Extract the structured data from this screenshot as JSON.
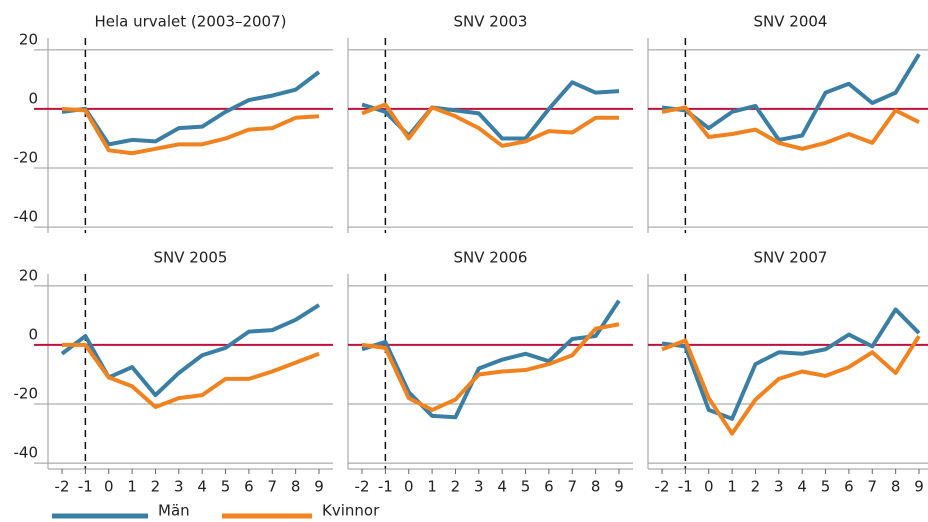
{
  "chart_data": [
    {
      "type": "line",
      "title": "Hela urvalet (2003–2007)",
      "x": [
        -2,
        -1,
        0,
        1,
        2,
        3,
        4,
        5,
        6,
        7,
        8,
        9
      ],
      "xlim": [
        -2.6,
        9.6
      ],
      "xticks": [
        -2,
        -1,
        0,
        1,
        2,
        3,
        4,
        5,
        6,
        7,
        8,
        9
      ],
      "ylim": [
        -42,
        24
      ],
      "yticks": [
        20,
        0,
        -20,
        -40
      ],
      "grid": true,
      "zero_line_color": "#c0103c",
      "dashed_vline": -1,
      "series": [
        {
          "name": "Män",
          "color": "#3a7fa3",
          "values": [
            -1,
            0,
            -12,
            -10.5,
            -11,
            -6.5,
            -6,
            -1,
            3,
            4.5,
            6.5,
            12.5
          ]
        },
        {
          "name": "Kvinnor",
          "color": "#f0831f",
          "values": [
            0,
            -0.5,
            -14,
            -15,
            -13.5,
            -12,
            -12,
            -10,
            -7,
            -6.5,
            -3,
            -2.5
          ]
        }
      ]
    },
    {
      "type": "line",
      "title": "SNV 2003",
      "x": [
        -2,
        -1,
        0,
        1,
        2,
        3,
        4,
        5,
        6,
        7,
        8,
        9
      ],
      "xlim": [
        -2.6,
        9.6
      ],
      "xticks": [
        -2,
        -1,
        0,
        1,
        2,
        3,
        4,
        5,
        6,
        7,
        8,
        9
      ],
      "ylim": [
        -42,
        24
      ],
      "yticks": [
        20,
        0,
        -20,
        -40
      ],
      "grid": true,
      "zero_line_color": "#c0103c",
      "dashed_vline": -1,
      "series": [
        {
          "name": "Män",
          "color": "#3a7fa3",
          "values": [
            1.5,
            -1,
            -9,
            0.5,
            -0.5,
            -1.5,
            -10,
            -10,
            0,
            9,
            5.5,
            6
          ]
        },
        {
          "name": "Kvinnor",
          "color": "#f0831f",
          "values": [
            -1.5,
            1.5,
            -10,
            0.5,
            -2.5,
            -6.5,
            -12.5,
            -11,
            -7.5,
            -8,
            -3,
            -3
          ]
        }
      ]
    },
    {
      "type": "line",
      "title": "SNV 2004",
      "x": [
        -2,
        -1,
        0,
        1,
        2,
        3,
        4,
        5,
        6,
        7,
        8,
        9
      ],
      "xlim": [
        -2.6,
        9.6
      ],
      "xticks": [
        -2,
        -1,
        0,
        1,
        2,
        3,
        4,
        5,
        6,
        7,
        8,
        9
      ],
      "ylim": [
        -42,
        24
      ],
      "yticks": [
        20,
        0,
        -20,
        -40
      ],
      "grid": true,
      "zero_line_color": "#c0103c",
      "dashed_vline": -1,
      "series": [
        {
          "name": "Män",
          "color": "#3a7fa3",
          "values": [
            0.5,
            -0.5,
            -6.5,
            -1,
            1,
            -10.5,
            -9,
            5.5,
            8.5,
            2,
            5.5,
            18.5
          ]
        },
        {
          "name": "Kvinnor",
          "color": "#f0831f",
          "values": [
            -1,
            0.5,
            -9.5,
            -8.5,
            -7,
            -11.5,
            -13.5,
            -11.5,
            -8.5,
            -11.5,
            -0.5,
            -4.5
          ]
        }
      ]
    },
    {
      "type": "line",
      "title": "SNV 2005",
      "x": [
        -2,
        -1,
        0,
        1,
        2,
        3,
        4,
        5,
        6,
        7,
        8,
        9
      ],
      "xlim": [
        -2.6,
        9.6
      ],
      "xticks": [
        -2,
        -1,
        0,
        1,
        2,
        3,
        4,
        5,
        6,
        7,
        8,
        9
      ],
      "ylim": [
        -42,
        24
      ],
      "yticks": [
        20,
        0,
        -20,
        -40
      ],
      "grid": true,
      "zero_line_color": "#c0103c",
      "dashed_vline": -1,
      "series": [
        {
          "name": "Män",
          "color": "#3a7fa3",
          "values": [
            -3,
            3,
            -11,
            -7.5,
            -17,
            -9.5,
            -3.5,
            -1,
            4.5,
            5,
            8.5,
            13.5
          ]
        },
        {
          "name": "Kvinnor",
          "color": "#f0831f",
          "values": [
            0,
            0,
            -11,
            -14,
            -21,
            -18,
            -17,
            -11.5,
            -11.5,
            -9,
            -6,
            -3
          ]
        }
      ]
    },
    {
      "type": "line",
      "title": "SNV 2006",
      "x": [
        -2,
        -1,
        0,
        1,
        2,
        3,
        4,
        5,
        6,
        7,
        8,
        9
      ],
      "xlim": [
        -2.6,
        9.6
      ],
      "xticks": [
        -2,
        -1,
        0,
        1,
        2,
        3,
        4,
        5,
        6,
        7,
        8,
        9
      ],
      "ylim": [
        -42,
        24
      ],
      "yticks": [
        20,
        0,
        -20,
        -40
      ],
      "grid": true,
      "zero_line_color": "#c0103c",
      "dashed_vline": -1,
      "series": [
        {
          "name": "Män",
          "color": "#3a7fa3",
          "values": [
            -1.5,
            1,
            -16,
            -24,
            -24.5,
            -8,
            -5,
            -3,
            -5.5,
            2,
            3,
            15
          ]
        },
        {
          "name": "Kvinnor",
          "color": "#f0831f",
          "values": [
            0,
            -1,
            -18,
            -22,
            -18.5,
            -10,
            -9,
            -8.5,
            -6.5,
            -3.5,
            5.5,
            7
          ]
        }
      ]
    },
    {
      "type": "line",
      "title": "SNV 2007",
      "x": [
        -2,
        -1,
        0,
        1,
        2,
        3,
        4,
        5,
        6,
        7,
        8,
        9
      ],
      "xlim": [
        -2.6,
        9.6
      ],
      "xticks": [
        -2,
        -1,
        0,
        1,
        2,
        3,
        4,
        5,
        6,
        7,
        8,
        9
      ],
      "ylim": [
        -42,
        24
      ],
      "yticks": [
        20,
        0,
        -20,
        -40
      ],
      "grid": true,
      "zero_line_color": "#c0103c",
      "dashed_vline": -1,
      "series": [
        {
          "name": "Män",
          "color": "#3a7fa3",
          "values": [
            0.5,
            -0.5,
            -22,
            -25,
            -6.5,
            -2.5,
            -3,
            -1.5,
            3.5,
            -0.5,
            12,
            4
          ]
        },
        {
          "name": "Kvinnor",
          "color": "#f0831f",
          "values": [
            -1.5,
            1.5,
            -18,
            -30,
            -18.5,
            -11.5,
            -9,
            -10.5,
            -7.5,
            -2.5,
            -9.5,
            3
          ]
        }
      ]
    }
  ]
}
